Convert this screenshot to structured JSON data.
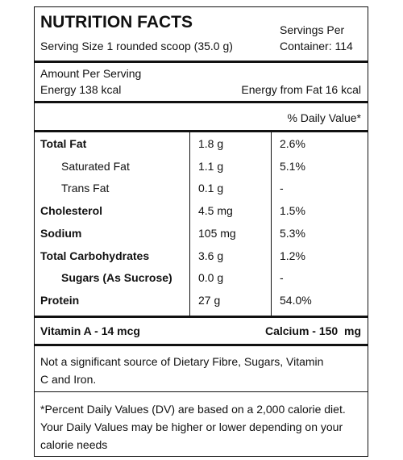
{
  "header": {
    "title": "NUTRITION FACTS",
    "serving_size": "Serving Size 1 rounded scoop (35.0 g)",
    "servings_per_container": "Servings Per Container: 114"
  },
  "energy": {
    "heading": "Amount Per Serving",
    "energy": "Energy 138 kcal",
    "energy_from_fat": "Energy from Fat 16 kcal"
  },
  "daily_value_heading": "% Daily Value*",
  "table": {
    "rows": [
      [
        "Total Fat",
        "1.8 g",
        "2.6%"
      ],
      [
        "Saturated Fat",
        "1.1 g",
        "5.1%"
      ],
      [
        "Trans Fat",
        "0.1 g",
        "-"
      ],
      [
        "Cholesterol",
        "4.5 mg",
        "1.5%"
      ],
      [
        "Sodium",
        "105 mg",
        "5.3%"
      ],
      [
        "Total Carbohydrates",
        "3.6 g",
        "1.2%"
      ],
      [
        "Sugars (As Sucrose)",
        "0.0 g",
        "-"
      ],
      [
        "Protein",
        "27 g",
        "54.0%"
      ]
    ]
  },
  "vitamins": {
    "vitamin_a": "Vitamin A - 14 mcg",
    "calcium": "Calcium - 150  mg"
  },
  "note": "Not a significant source of Dietary Fibre, Sugars, Vitamin C and Iron.",
  "footnote": "*Percent Daily Values (DV) are based on a 2,000 calorie diet. Your Daily Values may be higher or lower depending on your calorie needs"
}
